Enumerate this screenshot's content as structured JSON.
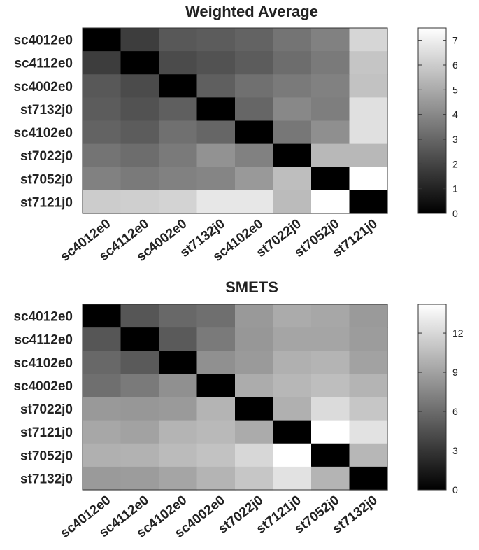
{
  "chart_data": [
    {
      "type": "heatmap",
      "title": "Weighted Average",
      "row_labels": [
        "sc4012e0",
        "sc4112e0",
        "sc4002e0",
        "st7132j0",
        "sc4102e0",
        "st7022j0",
        "st7052j0",
        "st7121j0"
      ],
      "col_labels": [
        "sc4012e0",
        "sc4112e0",
        "sc4002e0",
        "st7132j0",
        "sc4102e0",
        "st7022j0",
        "st7052j0",
        "st7121j0"
      ],
      "values": [
        [
          0.0,
          1.8,
          2.6,
          2.7,
          2.9,
          3.4,
          3.8,
          6.3
        ],
        [
          1.8,
          0.0,
          2.2,
          2.4,
          2.7,
          3.2,
          3.6,
          5.8
        ],
        [
          2.6,
          2.2,
          0.0,
          2.8,
          3.3,
          3.6,
          3.8,
          5.7
        ],
        [
          2.7,
          2.4,
          2.8,
          0.0,
          3.0,
          4.0,
          3.7,
          6.6
        ],
        [
          2.9,
          2.7,
          3.3,
          3.0,
          0.0,
          3.5,
          4.2,
          6.6
        ],
        [
          3.4,
          3.2,
          3.6,
          4.3,
          3.8,
          0.0,
          5.4,
          5.4
        ],
        [
          3.8,
          3.6,
          3.8,
          3.9,
          4.5,
          5.6,
          0.0,
          7.5
        ],
        [
          6.0,
          6.1,
          6.2,
          6.8,
          6.8,
          5.5,
          7.5,
          0.0
        ]
      ],
      "colorbar": {
        "min": 0,
        "max": 7.5,
        "ticks": [
          0,
          1,
          2,
          3,
          4,
          5,
          6,
          7
        ]
      },
      "colormap": "gray"
    },
    {
      "type": "heatmap",
      "title": "SMETS",
      "row_labels": [
        "sc4012e0",
        "sc4112e0",
        "sc4102e0",
        "sc4002e0",
        "st7022j0",
        "st7121j0",
        "st7052j0",
        "st7132j0"
      ],
      "col_labels": [
        "sc4012e0",
        "sc4112e0",
        "sc4102e0",
        "sc4002e0",
        "st7022j0",
        "st7121j0",
        "st7052j0",
        "st7132j0"
      ],
      "values": [
        [
          0.0,
          4.8,
          5.8,
          6.2,
          8.5,
          9.5,
          9.3,
          8.6
        ],
        [
          4.8,
          0.0,
          5.0,
          6.8,
          8.4,
          9.2,
          9.2,
          8.7
        ],
        [
          5.8,
          5.0,
          0.0,
          8.0,
          8.6,
          9.8,
          10.0,
          9.0
        ],
        [
          6.2,
          6.8,
          8.0,
          0.0,
          9.6,
          10.2,
          10.6,
          10.0
        ],
        [
          8.5,
          8.4,
          8.6,
          10.0,
          0.0,
          9.8,
          12.2,
          11.0
        ],
        [
          9.3,
          9.0,
          10.0,
          10.3,
          9.5,
          0.0,
          14.2,
          12.6
        ],
        [
          9.8,
          9.9,
          10.4,
          10.8,
          12.0,
          14.2,
          0.0,
          10.2
        ],
        [
          8.6,
          8.7,
          9.2,
          10.0,
          11.0,
          12.6,
          10.0,
          0.0
        ]
      ],
      "colorbar": {
        "min": 0,
        "max": 14.2,
        "ticks": [
          0,
          3,
          6,
          9,
          12
        ]
      },
      "colormap": "gray"
    }
  ]
}
